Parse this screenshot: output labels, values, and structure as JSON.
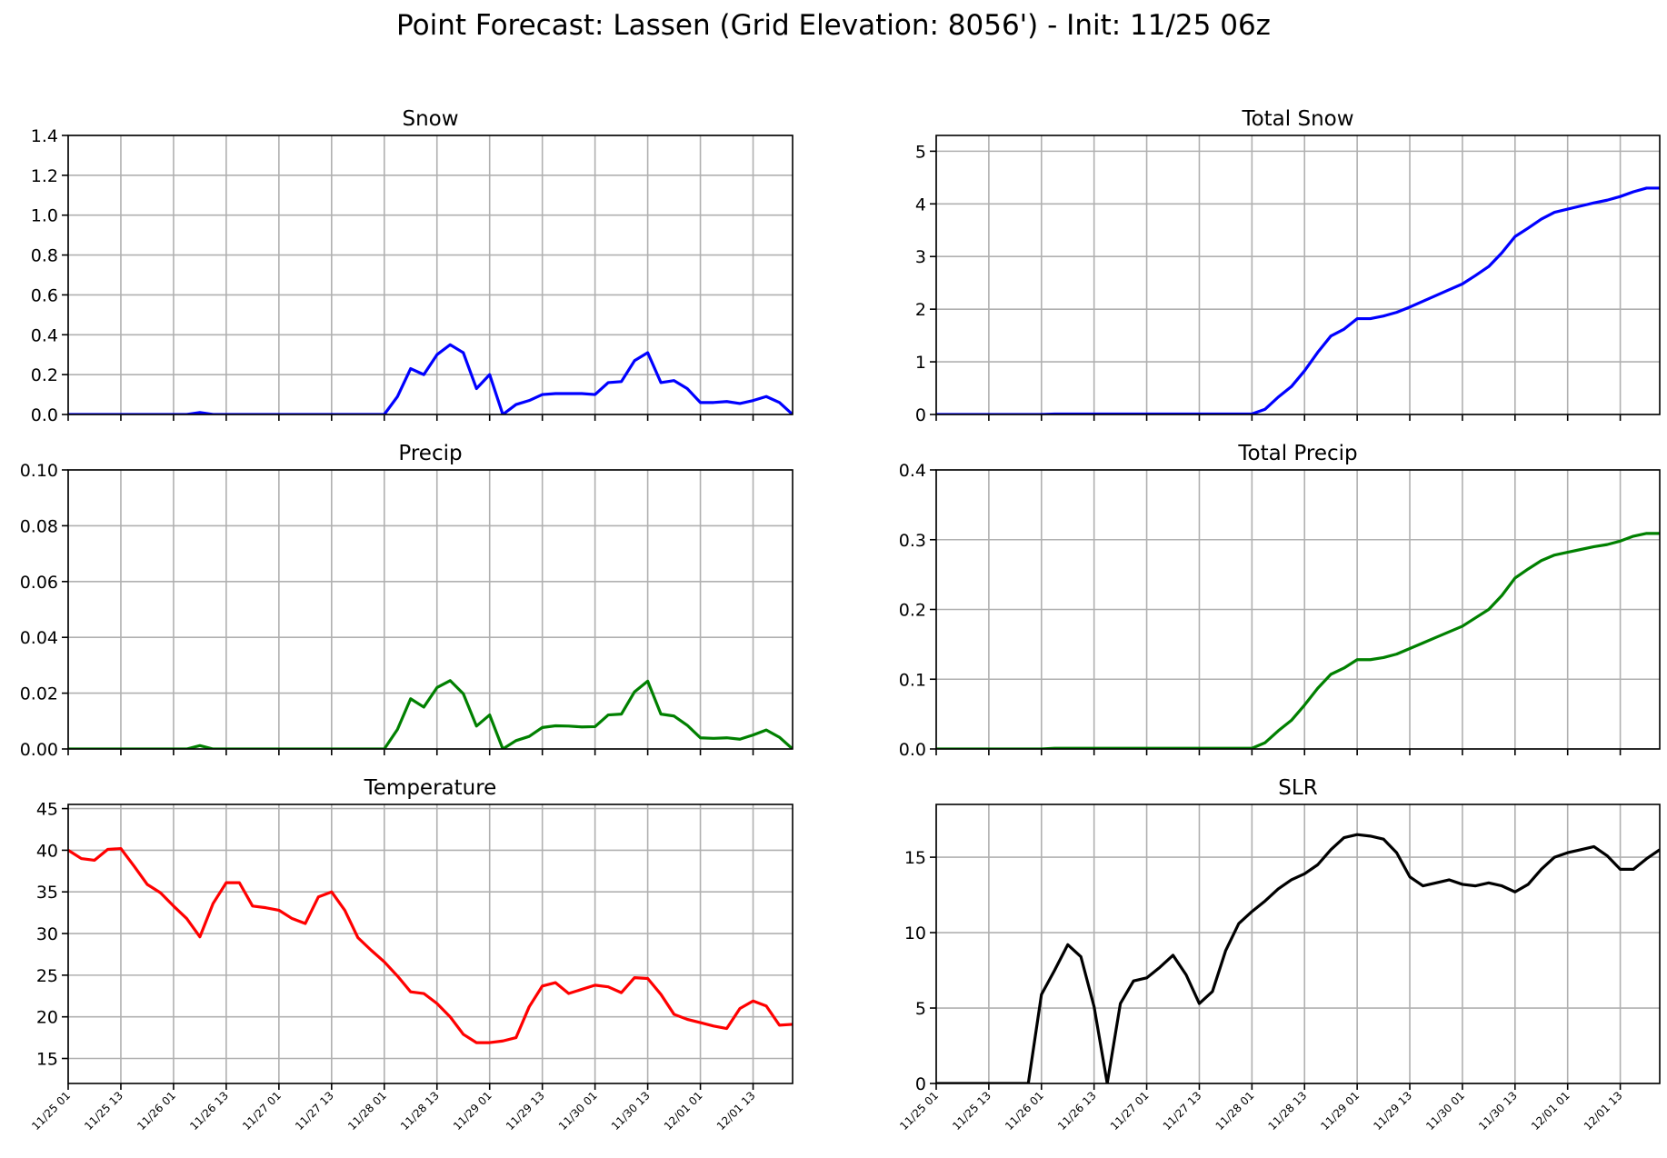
{
  "figure": {
    "title": "Point Forecast: Lassen (Grid Elevation: 8056') - Init: 11/25 06z"
  },
  "x_tick_labels": [
    "11/25 01",
    "11/25 13",
    "11/26 01",
    "11/26 13",
    "11/27 01",
    "11/27 13",
    "11/28 01",
    "11/28 13",
    "11/29 01",
    "11/29 13",
    "11/30 01",
    "11/30 13",
    "12/01 01",
    "12/01 13"
  ],
  "chart_data": [
    {
      "type": "line",
      "title": "Snow",
      "color": "#0000ff",
      "ylim": [
        0,
        1.4
      ],
      "yticks": [
        0.0,
        0.2,
        0.4,
        0.6,
        0.8,
        1.0,
        1.2,
        1.4
      ],
      "yfmt": 1,
      "x_step_hours": 3,
      "x_start": "11/25 01",
      "values": [
        0,
        0,
        0,
        0,
        0,
        0,
        0,
        0,
        0,
        0,
        0.01,
        0,
        0,
        0,
        0,
        0,
        0,
        0,
        0,
        0,
        0,
        0,
        0,
        0,
        0,
        0.09,
        0.23,
        0.2,
        0.3,
        0.35,
        0.31,
        0.13,
        0.2,
        0,
        0.05,
        0.07,
        0.1,
        0.105,
        0.105,
        0.105,
        0.1,
        0.16,
        0.165,
        0.27,
        0.31,
        0.16,
        0.17,
        0.13,
        0.06,
        0.06,
        0.065,
        0.055,
        0.07,
        0.09,
        0.06,
        0
      ]
    },
    {
      "type": "line",
      "title": "Total Snow",
      "color": "#0000ff",
      "ylim": [
        0,
        5.3
      ],
      "yticks": [
        0,
        1,
        2,
        3,
        4,
        5
      ],
      "yfmt": 0,
      "x_step_hours": 3,
      "x_start": "11/25 01",
      "values": [
        0,
        0,
        0,
        0,
        0,
        0,
        0,
        0,
        0,
        0.01,
        0.01,
        0.01,
        0.01,
        0.01,
        0.01,
        0.01,
        0.01,
        0.01,
        0.01,
        0.01,
        0.01,
        0.01,
        0.01,
        0.01,
        0.01,
        0.1,
        0.33,
        0.53,
        0.83,
        1.18,
        1.49,
        1.62,
        1.82,
        1.82,
        1.87,
        1.94,
        2.04,
        2.15,
        2.26,
        2.37,
        2.48,
        2.64,
        2.81,
        3.07,
        3.38,
        3.54,
        3.71,
        3.84,
        3.9,
        3.96,
        4.02,
        4.07,
        4.14,
        4.23,
        4.3,
        4.3
      ]
    },
    {
      "type": "line",
      "title": "Precip",
      "color": "#008000",
      "ylim": [
        0,
        0.1
      ],
      "yticks": [
        0.0,
        0.02,
        0.04,
        0.06,
        0.08,
        0.1
      ],
      "yfmt": 2,
      "x_step_hours": 3,
      "x_start": "11/25 01",
      "values": [
        0,
        0,
        0,
        0,
        0,
        0,
        0,
        0,
        0,
        0,
        0.0012,
        0,
        0,
        0,
        0,
        0,
        0,
        0,
        0,
        0,
        0,
        0,
        0,
        0,
        0,
        0.007,
        0.018,
        0.015,
        0.022,
        0.0245,
        0.0198,
        0.0082,
        0.0122,
        0,
        0.003,
        0.0045,
        0.0077,
        0.0083,
        0.0082,
        0.0079,
        0.008,
        0.0122,
        0.0125,
        0.0205,
        0.0243,
        0.0125,
        0.0118,
        0.0085,
        0.004,
        0.0038,
        0.004,
        0.0035,
        0.005,
        0.0068,
        0.0042,
        0
      ]
    },
    {
      "type": "line",
      "title": "Total Precip",
      "color": "#008000",
      "ylim": [
        0,
        0.4
      ],
      "yticks": [
        0.0,
        0.1,
        0.2,
        0.3,
        0.4
      ],
      "yfmt": 1,
      "x_step_hours": 3,
      "x_start": "11/25 01",
      "values": [
        0,
        0,
        0,
        0,
        0,
        0,
        0,
        0,
        0,
        0.001,
        0.001,
        0.001,
        0.001,
        0.001,
        0.001,
        0.001,
        0.001,
        0.001,
        0.001,
        0.001,
        0.001,
        0.001,
        0.001,
        0.001,
        0.001,
        0.009,
        0.026,
        0.041,
        0.063,
        0.087,
        0.107,
        0.116,
        0.128,
        0.128,
        0.131,
        0.136,
        0.144,
        0.152,
        0.16,
        0.168,
        0.176,
        0.188,
        0.2,
        0.22,
        0.245,
        0.258,
        0.27,
        0.278,
        0.282,
        0.286,
        0.29,
        0.293,
        0.298,
        0.305,
        0.309,
        0.309
      ]
    },
    {
      "type": "line",
      "title": "Temperature",
      "color": "#ff0000",
      "ylim": [
        12,
        45.5
      ],
      "yticks": [
        15,
        20,
        25,
        30,
        35,
        40,
        45
      ],
      "yfmt": 0,
      "x_step_hours": 3,
      "x_start": "11/25 01",
      "values": [
        40,
        39,
        38.8,
        40.1,
        40.2,
        38.1,
        35.9,
        34.9,
        33.3,
        31.8,
        29.6,
        33.6,
        36.1,
        36.1,
        33.3,
        33.1,
        32.8,
        31.8,
        31.2,
        34.4,
        35,
        32.8,
        29.5,
        28,
        26.6,
        24.9,
        23,
        22.8,
        21.6,
        20,
        17.9,
        16.9,
        16.9,
        17.1,
        17.5,
        21.2,
        23.7,
        24.1,
        22.8,
        23.3,
        23.8,
        23.6,
        22.9,
        24.7,
        24.6,
        22.7,
        20.3,
        19.7,
        19.3,
        18.9,
        18.6,
        21,
        21.9,
        21.3,
        19,
        19.1
      ]
    },
    {
      "type": "line",
      "title": "SLR",
      "color": "#000000",
      "ylim": [
        0,
        18.5
      ],
      "yticks": [
        0,
        5,
        10,
        15
      ],
      "yfmt": 0,
      "x_step_hours": 3,
      "x_start": "11/25 01",
      "values": [
        0,
        0,
        0,
        0,
        0,
        0,
        0,
        0,
        5.9,
        7.5,
        9.2,
        8.4,
        5.1,
        0,
        5.3,
        6.8,
        7,
        7.7,
        8.5,
        7.2,
        5.3,
        6.1,
        8.8,
        10.6,
        11.4,
        12.1,
        12.9,
        13.5,
        13.9,
        14.5,
        15.5,
        16.3,
        16.5,
        16.4,
        16.2,
        15.3,
        13.7,
        13.1,
        13.3,
        13.5,
        13.2,
        13.1,
        13.3,
        13.1,
        12.7,
        13.2,
        14.2,
        15,
        15.3,
        15.5,
        15.7,
        15.1,
        14.2,
        14.2,
        14.9,
        15.5
      ]
    }
  ]
}
